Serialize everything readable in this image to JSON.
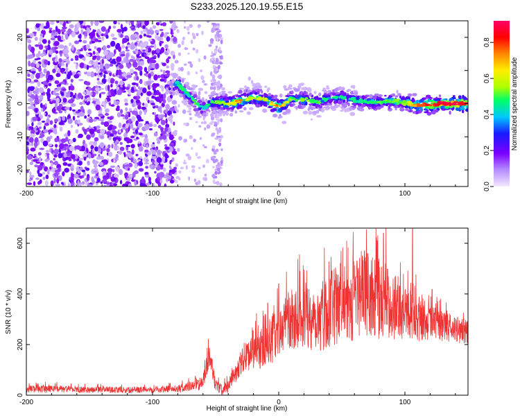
{
  "title": "S233.2025.120.19.55.E15",
  "colors": {
    "snr_line": "#ee3333",
    "background": "#ffffff",
    "axis": "#000000"
  },
  "chart_data": [
    {
      "type": "heatmap",
      "xlabel": "Height of straight line (km)",
      "ylabel": "Frequency (Hz)",
      "xlim": [
        -200,
        150
      ],
      "ylim": [
        -25,
        25
      ],
      "x_ticks": [
        -200,
        -100,
        0,
        100
      ],
      "y_ticks": [
        -20,
        -10,
        0,
        10,
        20
      ],
      "colorbar": {
        "label": "Normalized spectral amplitude",
        "range": [
          0,
          0.92
        ],
        "ticks": [
          "0.0",
          "0.2",
          "0.4",
          "0.6",
          "0.8"
        ],
        "colormap": [
          "#f4e9ff",
          "#b68cff",
          "#7a00ff",
          "#1a1aff",
          "#00c8ff",
          "#00ff66",
          "#aaff00",
          "#ffee00",
          "#ff8800",
          "#ff0000",
          "#ff0066"
        ]
      },
      "ridge": {
        "x": [
          -80,
          -75,
          -70,
          -65,
          -60,
          -55,
          -50,
          -40,
          -30,
          -20,
          -10,
          0,
          10,
          20,
          30,
          40,
          50,
          60,
          70,
          80,
          90,
          100,
          110,
          120,
          130,
          140,
          150
        ],
        "frequency": [
          6,
          4,
          2,
          0,
          -1.5,
          0,
          0.5,
          0,
          0.8,
          2,
          1,
          -1,
          1.5,
          1.2,
          0.5,
          1.5,
          2,
          1,
          0.5,
          0.5,
          0.8,
          0.3,
          -0.5,
          -0.3,
          0,
          0,
          0
        ],
        "amplitude": [
          0.5,
          0.45,
          0.45,
          0.5,
          0.4,
          0.45,
          0.5,
          0.6,
          0.75,
          0.55,
          0.6,
          0.8,
          0.5,
          0.55,
          0.5,
          0.45,
          0.45,
          0.45,
          0.45,
          0.5,
          0.5,
          0.55,
          0.8,
          0.85,
          0.9,
          0.9,
          0.9
        ]
      }
    },
    {
      "type": "line",
      "xlabel": "Height of straight line (km)",
      "ylabel": "SNR (10 * v/v)",
      "xlim": [
        -200,
        150
      ],
      "ylim": [
        0,
        660
      ],
      "x_ticks": [
        -200,
        -100,
        0,
        100
      ],
      "y_ticks": [
        0,
        200,
        400,
        600
      ],
      "series": [
        {
          "x": [
            -200,
            -180,
            -160,
            -140,
            -120,
            -100,
            -80,
            -70,
            -60,
            -55,
            -50,
            -45,
            -40,
            -30,
            -20,
            -10,
            0,
            10,
            20,
            30,
            40,
            50,
            60,
            70,
            80,
            90,
            100,
            110,
            120,
            130,
            140,
            150
          ],
          "values": [
            25,
            25,
            22,
            22,
            20,
            22,
            25,
            35,
            50,
            160,
            40,
            20,
            35,
            130,
            170,
            190,
            250,
            300,
            320,
            300,
            340,
            360,
            380,
            400,
            380,
            360,
            330,
            300,
            290,
            270,
            260,
            250
          ],
          "noise": [
            15,
            15,
            12,
            12,
            12,
            12,
            15,
            20,
            30,
            50,
            30,
            20,
            25,
            50,
            70,
            90,
            100,
            120,
            130,
            140,
            150,
            160,
            170,
            170,
            160,
            140,
            110,
            90,
            70,
            60,
            55,
            50
          ],
          "peaks": [
            [
              -55,
              185
            ],
            [
              0,
              440
            ],
            [
              62,
              530
            ],
            [
              68,
              570
            ],
            [
              78,
              610
            ],
            [
              83,
              640
            ],
            [
              106,
              660
            ]
          ]
        }
      ]
    }
  ]
}
